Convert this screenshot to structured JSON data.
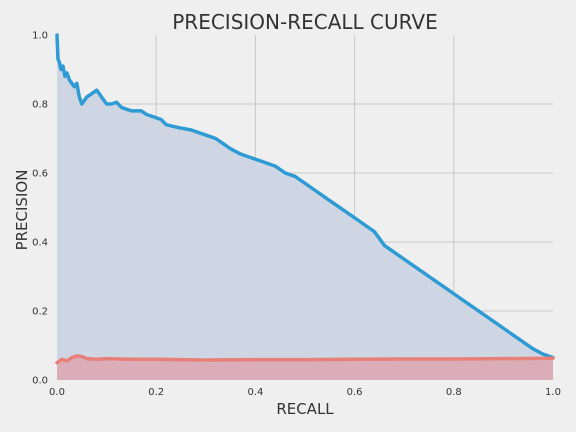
{
  "chart_data": {
    "type": "area",
    "title": "PRECISION-RECALL CURVE",
    "xlabel": "RECALL",
    "ylabel": "PRECISION",
    "xlim": [
      0,
      1
    ],
    "ylim": [
      0,
      1
    ],
    "x_ticks": [
      "0.0",
      "0.2",
      "0.4",
      "0.6",
      "0.8",
      "1.0"
    ],
    "y_ticks": [
      "0.0",
      "0.2",
      "0.4",
      "0.6",
      "0.8",
      "1.0"
    ],
    "grid": true,
    "background": "#efefef",
    "series": [
      {
        "color": "#2f9bd5",
        "fill": "#cfd6e3",
        "points": [
          [
            0.0,
            1.0
          ],
          [
            0.002,
            0.93
          ],
          [
            0.005,
            0.92
          ],
          [
            0.008,
            0.9
          ],
          [
            0.012,
            0.91
          ],
          [
            0.016,
            0.88
          ],
          [
            0.02,
            0.89
          ],
          [
            0.025,
            0.87
          ],
          [
            0.03,
            0.86
          ],
          [
            0.035,
            0.85
          ],
          [
            0.04,
            0.86
          ],
          [
            0.045,
            0.82
          ],
          [
            0.05,
            0.8
          ],
          [
            0.055,
            0.81
          ],
          [
            0.06,
            0.82
          ],
          [
            0.07,
            0.83
          ],
          [
            0.08,
            0.84
          ],
          [
            0.085,
            0.83
          ],
          [
            0.09,
            0.82
          ],
          [
            0.1,
            0.8
          ],
          [
            0.11,
            0.8
          ],
          [
            0.12,
            0.805
          ],
          [
            0.13,
            0.79
          ],
          [
            0.15,
            0.78
          ],
          [
            0.17,
            0.78
          ],
          [
            0.18,
            0.77
          ],
          [
            0.2,
            0.76
          ],
          [
            0.21,
            0.755
          ],
          [
            0.22,
            0.74
          ],
          [
            0.25,
            0.73
          ],
          [
            0.27,
            0.725
          ],
          [
            0.28,
            0.72
          ],
          [
            0.3,
            0.71
          ],
          [
            0.32,
            0.7
          ],
          [
            0.33,
            0.69
          ],
          [
            0.35,
            0.67
          ],
          [
            0.37,
            0.655
          ],
          [
            0.38,
            0.65
          ],
          [
            0.4,
            0.64
          ],
          [
            0.42,
            0.63
          ],
          [
            0.44,
            0.62
          ],
          [
            0.46,
            0.6
          ],
          [
            0.48,
            0.59
          ],
          [
            0.5,
            0.57
          ],
          [
            0.52,
            0.55
          ],
          [
            0.54,
            0.53
          ],
          [
            0.56,
            0.51
          ],
          [
            0.58,
            0.49
          ],
          [
            0.6,
            0.47
          ],
          [
            0.62,
            0.45
          ],
          [
            0.64,
            0.43
          ],
          [
            0.65,
            0.41
          ],
          [
            0.66,
            0.39
          ],
          [
            0.68,
            0.37
          ],
          [
            0.7,
            0.35
          ],
          [
            0.72,
            0.33
          ],
          [
            0.74,
            0.31
          ],
          [
            0.76,
            0.29
          ],
          [
            0.78,
            0.27
          ],
          [
            0.8,
            0.25
          ],
          [
            0.82,
            0.23
          ],
          [
            0.84,
            0.21
          ],
          [
            0.86,
            0.19
          ],
          [
            0.88,
            0.17
          ],
          [
            0.9,
            0.15
          ],
          [
            0.92,
            0.13
          ],
          [
            0.94,
            0.11
          ],
          [
            0.96,
            0.09
          ],
          [
            0.98,
            0.075
          ],
          [
            1.0,
            0.065
          ]
        ]
      },
      {
        "color": "#e8807a",
        "fill": "#dca9b2",
        "points": [
          [
            0.0,
            0.05
          ],
          [
            0.01,
            0.06
          ],
          [
            0.02,
            0.055
          ],
          [
            0.03,
            0.065
          ],
          [
            0.04,
            0.07
          ],
          [
            0.05,
            0.068
          ],
          [
            0.06,
            0.062
          ],
          [
            0.08,
            0.06
          ],
          [
            0.1,
            0.062
          ],
          [
            0.15,
            0.06
          ],
          [
            0.2,
            0.06
          ],
          [
            0.3,
            0.058
          ],
          [
            0.4,
            0.059
          ],
          [
            0.5,
            0.059
          ],
          [
            0.6,
            0.06
          ],
          [
            0.7,
            0.061
          ],
          [
            0.8,
            0.061
          ],
          [
            0.9,
            0.062
          ],
          [
            1.0,
            0.063
          ]
        ]
      }
    ]
  }
}
